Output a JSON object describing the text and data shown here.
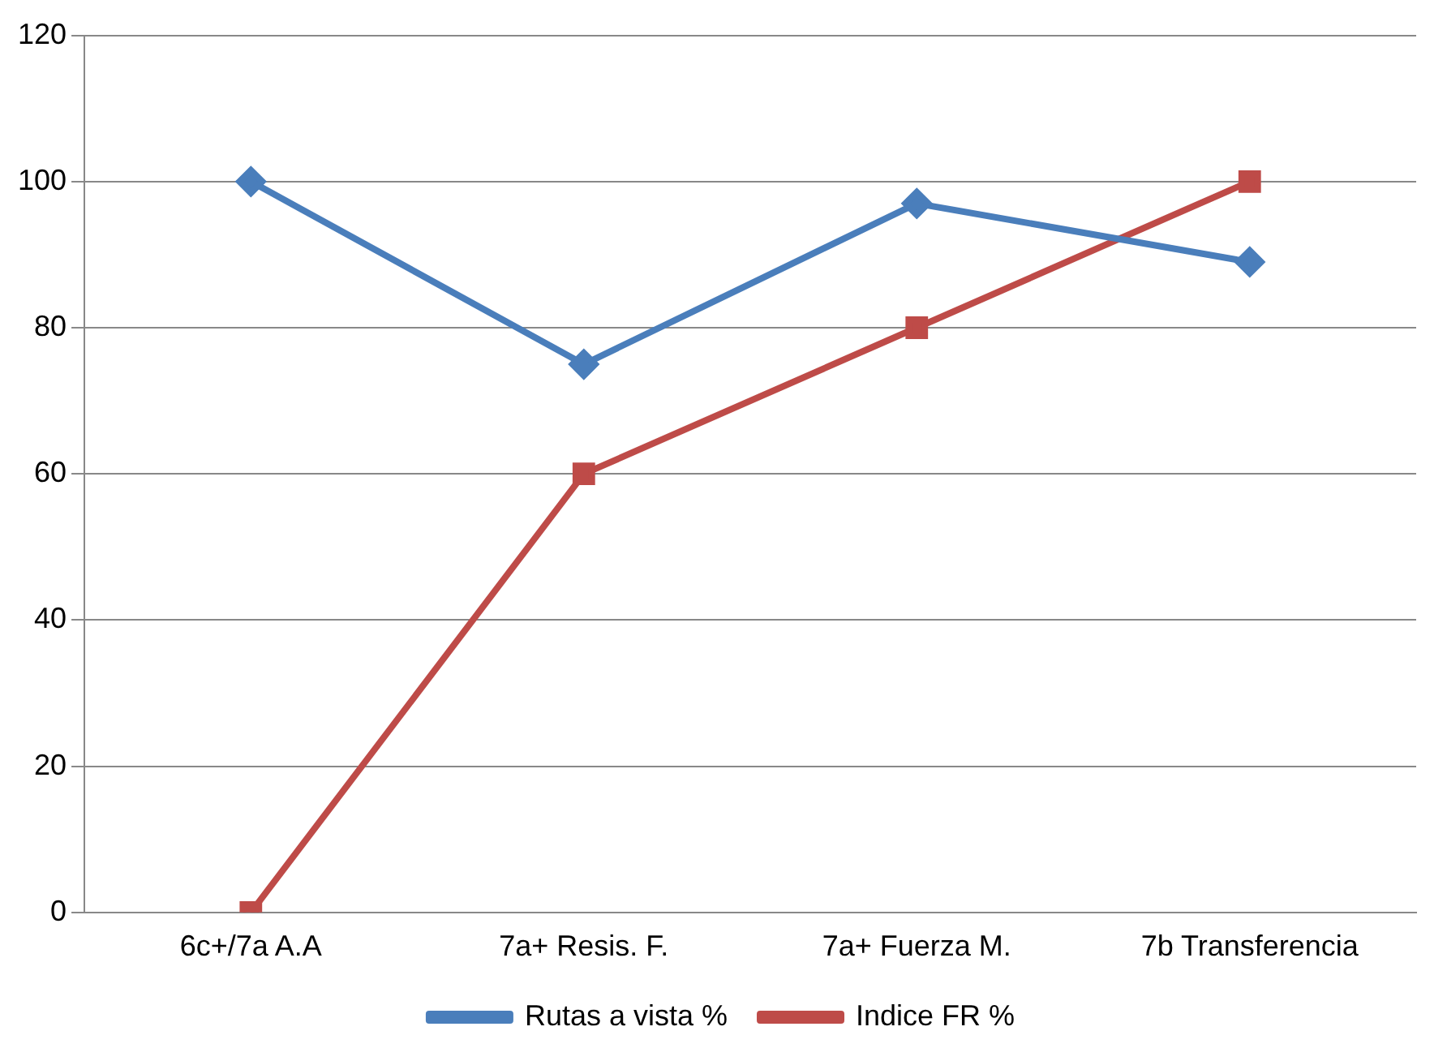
{
  "chart_data": {
    "type": "line",
    "categories": [
      "6c+/7a A.A",
      "7a+ Resis. F.",
      "7a+ Fuerza M.",
      "7b Transferencia"
    ],
    "series": [
      {
        "name": "Rutas a vista %",
        "color": "#4a7ebb",
        "values": [
          100,
          75,
          97,
          89
        ],
        "marker": "diamond"
      },
      {
        "name": "Indice FR %",
        "color": "#be4b48",
        "values": [
          0,
          60,
          80,
          100
        ],
        "marker": "square"
      }
    ],
    "ylim": [
      0,
      120
    ],
    "yticks": [
      0,
      20,
      40,
      60,
      80,
      100,
      120
    ],
    "grid": "y",
    "legend": "bottom",
    "line_style": "solid"
  }
}
